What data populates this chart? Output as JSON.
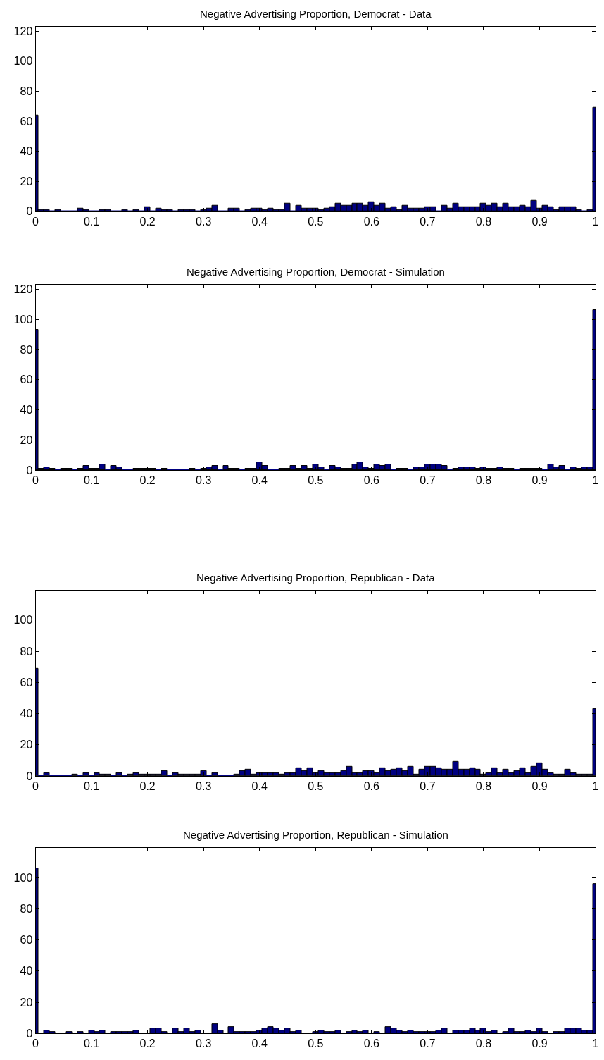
{
  "chart_data": [
    {
      "type": "histogram",
      "title": "Negative Advertising Proportion, Democrat - Data",
      "color": "#000080",
      "xlim": [
        0,
        1
      ],
      "ylim": [
        0,
        123
      ],
      "xticks": [
        0,
        0.1,
        0.2,
        0.3,
        0.4,
        0.5,
        0.6,
        0.7,
        0.8,
        0.9,
        1
      ],
      "yticks": [
        0,
        20,
        40,
        60,
        80,
        100,
        120
      ],
      "bins": [
        0,
        0.005,
        0.015,
        0.025,
        0.035,
        0.045,
        0.055,
        0.065,
        0.075,
        0.085,
        0.095,
        0.105,
        0.115,
        0.125,
        0.135,
        0.145,
        0.155,
        0.165,
        0.175,
        0.185,
        0.195,
        0.205,
        0.215,
        0.225,
        0.235,
        0.245,
        0.255,
        0.265,
        0.275,
        0.285,
        0.295,
        0.305,
        0.315,
        0.325,
        0.335,
        0.345,
        0.355,
        0.365,
        0.375,
        0.385,
        0.395,
        0.405,
        0.415,
        0.425,
        0.435,
        0.445,
        0.455,
        0.465,
        0.475,
        0.485,
        0.495,
        0.505,
        0.515,
        0.525,
        0.535,
        0.545,
        0.555,
        0.565,
        0.575,
        0.585,
        0.595,
        0.605,
        0.615,
        0.625,
        0.635,
        0.645,
        0.655,
        0.665,
        0.675,
        0.685,
        0.695,
        0.705,
        0.715,
        0.725,
        0.735,
        0.745,
        0.755,
        0.765,
        0.775,
        0.785,
        0.795,
        0.805,
        0.815,
        0.825,
        0.835,
        0.845,
        0.855,
        0.865,
        0.875,
        0.885,
        0.895,
        0.905,
        0.915,
        0.925,
        0.935,
        0.945,
        0.955,
        0.965,
        0.975,
        0.985,
        0.995,
        1
      ],
      "values": [
        64,
        1,
        1,
        0,
        1,
        0,
        0,
        0,
        2,
        1,
        0,
        0,
        1,
        1,
        0,
        0,
        1,
        0,
        1,
        0,
        3,
        0,
        2,
        1,
        1,
        0,
        1,
        1,
        1,
        0,
        1,
        2,
        4,
        0,
        0,
        2,
        2,
        0,
        1,
        2,
        2,
        1,
        2,
        1,
        1,
        5,
        0,
        4,
        2,
        2,
        2,
        1,
        2,
        3,
        5,
        4,
        4,
        5,
        5,
        4,
        6,
        4,
        5,
        2,
        3,
        1,
        4,
        2,
        2,
        2,
        3,
        3,
        0,
        4,
        2,
        5,
        3,
        3,
        3,
        3,
        5,
        4,
        5,
        3,
        5,
        3,
        3,
        4,
        3,
        7,
        2,
        4,
        3,
        1,
        3,
        3,
        3,
        1,
        0,
        1,
        69
      ]
    },
    {
      "type": "histogram",
      "title": "Negative Advertising Proportion, Democrat - Simulation",
      "color": "#000080",
      "xlim": [
        0,
        1
      ],
      "ylim": [
        0,
        123
      ],
      "xticks": [
        0,
        0.1,
        0.2,
        0.3,
        0.4,
        0.5,
        0.6,
        0.7,
        0.8,
        0.9,
        1
      ],
      "yticks": [
        0,
        20,
        40,
        60,
        80,
        100,
        120
      ],
      "bins": [
        0,
        0.005,
        0.015,
        0.025,
        0.035,
        0.045,
        0.055,
        0.065,
        0.075,
        0.085,
        0.095,
        0.105,
        0.115,
        0.125,
        0.135,
        0.145,
        0.155,
        0.165,
        0.175,
        0.185,
        0.195,
        0.205,
        0.215,
        0.225,
        0.235,
        0.245,
        0.255,
        0.265,
        0.275,
        0.285,
        0.295,
        0.305,
        0.315,
        0.325,
        0.335,
        0.345,
        0.355,
        0.365,
        0.375,
        0.385,
        0.395,
        0.405,
        0.415,
        0.425,
        0.435,
        0.445,
        0.455,
        0.465,
        0.475,
        0.485,
        0.495,
        0.505,
        0.515,
        0.525,
        0.535,
        0.545,
        0.555,
        0.565,
        0.575,
        0.585,
        0.595,
        0.605,
        0.615,
        0.625,
        0.635,
        0.645,
        0.655,
        0.665,
        0.675,
        0.685,
        0.695,
        0.705,
        0.715,
        0.725,
        0.735,
        0.745,
        0.755,
        0.765,
        0.775,
        0.785,
        0.795,
        0.805,
        0.815,
        0.825,
        0.835,
        0.845,
        0.855,
        0.865,
        0.875,
        0.885,
        0.895,
        0.905,
        0.915,
        0.925,
        0.935,
        0.945,
        0.955,
        0.965,
        0.975,
        0.985,
        0.995,
        1
      ],
      "values": [
        93,
        1,
        2,
        1,
        0,
        1,
        1,
        0,
        1,
        3,
        1,
        1,
        4,
        0,
        3,
        2,
        0,
        0,
        1,
        1,
        1,
        1,
        0,
        1,
        0,
        0,
        0,
        0,
        1,
        0,
        1,
        2,
        3,
        0,
        3,
        1,
        1,
        0,
        1,
        1,
        5,
        3,
        0,
        0,
        1,
        1,
        3,
        1,
        3,
        1,
        4,
        2,
        0,
        3,
        2,
        1,
        1,
        4,
        5,
        2,
        1,
        4,
        3,
        4,
        0,
        1,
        1,
        0,
        2,
        2,
        4,
        4,
        4,
        3,
        0,
        1,
        2,
        2,
        2,
        1,
        2,
        1,
        1,
        2,
        1,
        1,
        0,
        1,
        1,
        1,
        1,
        0,
        4,
        2,
        3,
        0,
        2,
        1,
        2,
        2,
        106
      ]
    },
    {
      "type": "histogram",
      "title": "Negative Advertising Proportion, Republican - Data",
      "color": "#000080",
      "xlim": [
        0,
        1
      ],
      "ylim": [
        0,
        119
      ],
      "xticks": [
        0,
        0.1,
        0.2,
        0.3,
        0.4,
        0.5,
        0.6,
        0.7,
        0.8,
        0.9,
        1
      ],
      "yticks": [
        0,
        20,
        40,
        60,
        80,
        100
      ],
      "bins": [
        0,
        0.005,
        0.015,
        0.025,
        0.035,
        0.045,
        0.055,
        0.065,
        0.075,
        0.085,
        0.095,
        0.105,
        0.115,
        0.125,
        0.135,
        0.145,
        0.155,
        0.165,
        0.175,
        0.185,
        0.195,
        0.205,
        0.215,
        0.225,
        0.235,
        0.245,
        0.255,
        0.265,
        0.275,
        0.285,
        0.295,
        0.305,
        0.315,
        0.325,
        0.335,
        0.345,
        0.355,
        0.365,
        0.375,
        0.385,
        0.395,
        0.405,
        0.415,
        0.425,
        0.435,
        0.445,
        0.455,
        0.465,
        0.475,
        0.485,
        0.495,
        0.505,
        0.515,
        0.525,
        0.535,
        0.545,
        0.555,
        0.565,
        0.575,
        0.585,
        0.595,
        0.605,
        0.615,
        0.625,
        0.635,
        0.645,
        0.655,
        0.665,
        0.675,
        0.685,
        0.695,
        0.705,
        0.715,
        0.725,
        0.735,
        0.745,
        0.755,
        0.765,
        0.775,
        0.785,
        0.795,
        0.805,
        0.815,
        0.825,
        0.835,
        0.845,
        0.855,
        0.865,
        0.875,
        0.885,
        0.895,
        0.905,
        0.915,
        0.925,
        0.935,
        0.945,
        0.955,
        0.965,
        0.975,
        0.985,
        0.995,
        1
      ],
      "values": [
        69,
        0,
        2,
        0,
        0,
        0,
        0,
        1,
        0,
        2,
        0,
        2,
        1,
        1,
        0,
        2,
        0,
        1,
        2,
        1,
        1,
        1,
        1,
        3,
        0,
        2,
        1,
        1,
        1,
        1,
        3,
        0,
        2,
        0,
        0,
        0,
        1,
        3,
        4,
        1,
        2,
        2,
        2,
        2,
        1,
        2,
        2,
        5,
        3,
        5,
        2,
        3,
        2,
        2,
        2,
        3,
        6,
        2,
        2,
        3,
        3,
        2,
        5,
        3,
        4,
        5,
        3,
        6,
        1,
        4,
        6,
        6,
        5,
        4,
        4,
        9,
        4,
        4,
        5,
        4,
        1,
        2,
        5,
        2,
        4,
        2,
        3,
        5,
        2,
        6,
        8,
        4,
        2,
        1,
        1,
        4,
        2,
        1,
        1,
        1,
        43
      ]
    },
    {
      "type": "histogram",
      "title": "Negative Advertising Proportion, Republican - Simulation",
      "color": "#000080",
      "xlim": [
        0,
        1
      ],
      "ylim": [
        0,
        119
      ],
      "xticks": [
        0,
        0.1,
        0.2,
        0.3,
        0.4,
        0.5,
        0.6,
        0.7,
        0.8,
        0.9,
        1
      ],
      "yticks": [
        0,
        20,
        40,
        60,
        80,
        100
      ],
      "bins": [
        0,
        0.005,
        0.015,
        0.025,
        0.035,
        0.045,
        0.055,
        0.065,
        0.075,
        0.085,
        0.095,
        0.105,
        0.115,
        0.125,
        0.135,
        0.145,
        0.155,
        0.165,
        0.175,
        0.185,
        0.195,
        0.205,
        0.215,
        0.225,
        0.235,
        0.245,
        0.255,
        0.265,
        0.275,
        0.285,
        0.295,
        0.305,
        0.315,
        0.325,
        0.335,
        0.345,
        0.355,
        0.365,
        0.375,
        0.385,
        0.395,
        0.405,
        0.415,
        0.425,
        0.435,
        0.445,
        0.455,
        0.465,
        0.475,
        0.485,
        0.495,
        0.505,
        0.515,
        0.525,
        0.535,
        0.545,
        0.555,
        0.565,
        0.575,
        0.585,
        0.595,
        0.605,
        0.615,
        0.625,
        0.635,
        0.645,
        0.655,
        0.665,
        0.675,
        0.685,
        0.695,
        0.705,
        0.715,
        0.725,
        0.735,
        0.745,
        0.755,
        0.765,
        0.775,
        0.785,
        0.795,
        0.805,
        0.815,
        0.825,
        0.835,
        0.845,
        0.855,
        0.865,
        0.875,
        0.885,
        0.895,
        0.905,
        0.915,
        0.925,
        0.935,
        0.945,
        0.955,
        0.965,
        0.975,
        0.985,
        0.995,
        1
      ],
      "values": [
        106,
        0,
        2,
        1,
        0,
        0,
        1,
        0,
        1,
        0,
        2,
        1,
        2,
        0,
        1,
        1,
        1,
        1,
        2,
        0,
        0,
        3,
        3,
        1,
        0,
        3,
        1,
        3,
        1,
        2,
        0,
        0,
        6,
        2,
        0,
        4,
        1,
        1,
        1,
        1,
        2,
        3,
        4,
        3,
        2,
        3,
        1,
        2,
        0,
        0,
        1,
        2,
        1,
        1,
        2,
        0,
        1,
        2,
        1,
        2,
        0,
        1,
        0,
        4,
        3,
        2,
        1,
        2,
        1,
        1,
        1,
        1,
        2,
        3,
        0,
        2,
        2,
        2,
        3,
        2,
        3,
        1,
        2,
        0,
        1,
        3,
        1,
        1,
        2,
        1,
        3,
        1,
        0,
        1,
        1,
        3,
        3,
        3,
        2,
        2,
        96
      ]
    }
  ]
}
